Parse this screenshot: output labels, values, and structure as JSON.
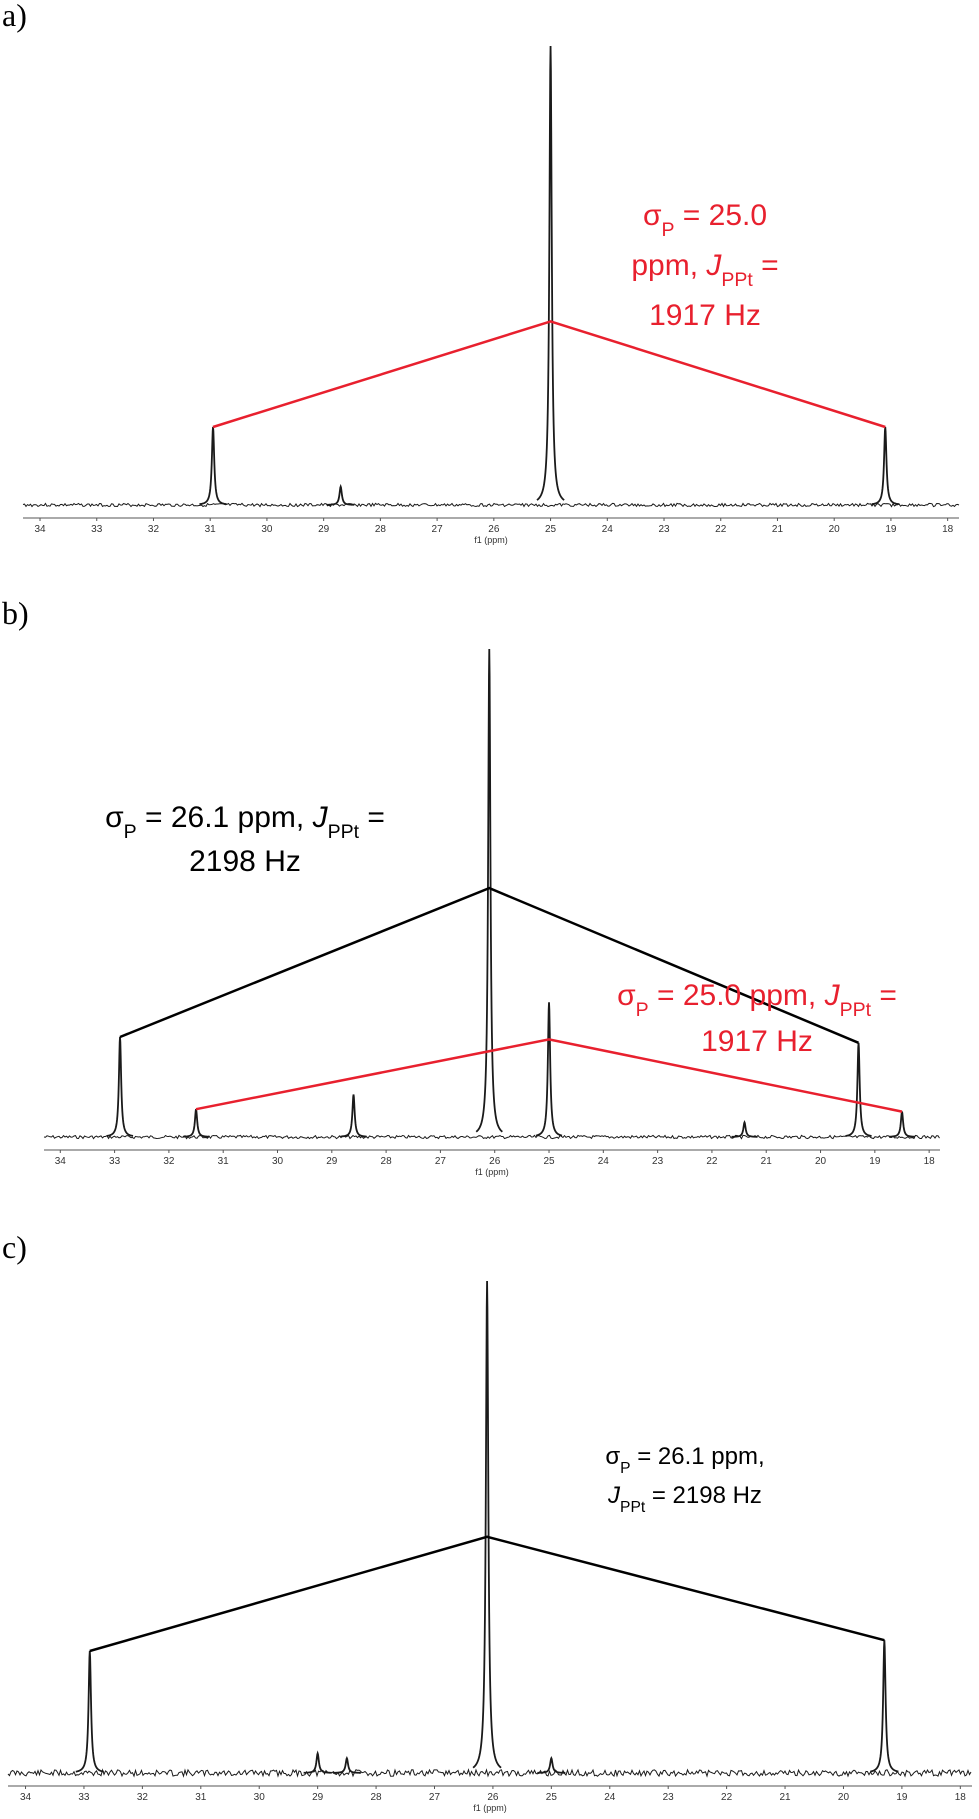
{
  "chart_data": [
    {
      "type": "spectrum",
      "label": "a)",
      "color": "#1a1a1a",
      "xlabel": "f1 (ppm)",
      "xlim": [
        34.3,
        17.8
      ],
      "xticks": [
        34,
        33,
        32,
        31,
        30,
        29,
        28,
        27,
        26,
        25,
        24,
        23,
        22,
        21,
        20,
        19,
        18
      ],
      "x": [
        30.95,
        28.7,
        25.0,
        19.1
      ],
      "values": [
        17,
        4,
        100,
        17
      ],
      "multiplets": [
        {
          "color": "#e8202e",
          "x": [
            30.95,
            25.0,
            19.1
          ]
        }
      ],
      "annotations": [
        {
          "color": "#e8202e",
          "lines": [
            [
              {
                "text": "σ"
              },
              {
                "text": "P",
                "style": "sub"
              },
              {
                "text": " = 25.0"
              }
            ],
            [
              {
                "text": "ppm, "
              },
              {
                "text": "J",
                "style": "italic"
              },
              {
                "text": "PPt",
                "style": "sub"
              },
              {
                "text": " ="
              }
            ],
            [
              {
                "text": "1917 Hz"
              }
            ]
          ]
        }
      ]
    },
    {
      "type": "spectrum",
      "label": "b)",
      "color": "#1a1a1a",
      "xlabel": "f1 (ppm)",
      "xlim": [
        34.3,
        17.8
      ],
      "xticks": [
        34,
        33,
        32,
        31,
        30,
        29,
        28,
        27,
        26,
        25,
        24,
        23,
        22,
        21,
        20,
        19,
        18
      ],
      "x": [
        32.9,
        31.5,
        28.6,
        26.1,
        25.0,
        21.4,
        19.3,
        18.5
      ],
      "values": [
        20.5,
        5.7,
        8.7,
        100,
        27.6,
        3,
        19.3,
        5.2
      ],
      "multiplets": [
        {
          "color": "#000000",
          "x": [
            32.9,
            26.1,
            19.3
          ]
        },
        {
          "color": "#e8202e",
          "x": [
            31.5,
            25.0,
            18.5
          ]
        }
      ],
      "annotations": [
        {
          "color": "#000000",
          "lines": [
            [
              {
                "text": "σ"
              },
              {
                "text": "P",
                "style": "sub"
              },
              {
                "text": " = 26.1 ppm, "
              },
              {
                "text": "J",
                "style": "italic"
              },
              {
                "text": "PPt",
                "style": "sub"
              },
              {
                "text": " ="
              }
            ],
            [
              {
                "text": "2198 Hz"
              }
            ]
          ]
        },
        {
          "color": "#e8202e",
          "lines": [
            [
              {
                "text": "σ"
              },
              {
                "text": "P",
                "style": "sub"
              },
              {
                "text": " = 25.0 ppm, "
              },
              {
                "text": "J",
                "style": "italic"
              },
              {
                "text": "PPt",
                "style": "sub"
              },
              {
                "text": " ="
              }
            ],
            [
              {
                "text": "1917 Hz"
              }
            ]
          ]
        }
      ]
    },
    {
      "type": "spectrum",
      "label": "c)",
      "color": "#1a1a1a",
      "xlabel": "f1 (ppm)",
      "xlim": [
        34.3,
        17.8
      ],
      "xticks": [
        34,
        33,
        32,
        31,
        30,
        29,
        28,
        27,
        26,
        25,
        24,
        23,
        22,
        21,
        20,
        19,
        18
      ],
      "x": [
        32.9,
        29.0,
        28.5,
        26.1,
        25.0,
        19.3
      ],
      "values": [
        24.8,
        4,
        3,
        100,
        3,
        27
      ],
      "multiplets": [
        {
          "color": "#000000",
          "x": [
            32.9,
            26.1,
            19.3
          ]
        }
      ],
      "annotations": [
        {
          "color": "#000000",
          "lines": [
            [
              {
                "text": "σ"
              },
              {
                "text": "P",
                "style": "sub"
              },
              {
                "text": " = 26.1 ppm,"
              }
            ],
            [
              {
                "text": "J",
                "style": "italic"
              },
              {
                "text": "PPt",
                "style": "sub"
              },
              {
                "text": " = 2198 Hz"
              }
            ]
          ]
        }
      ]
    }
  ]
}
